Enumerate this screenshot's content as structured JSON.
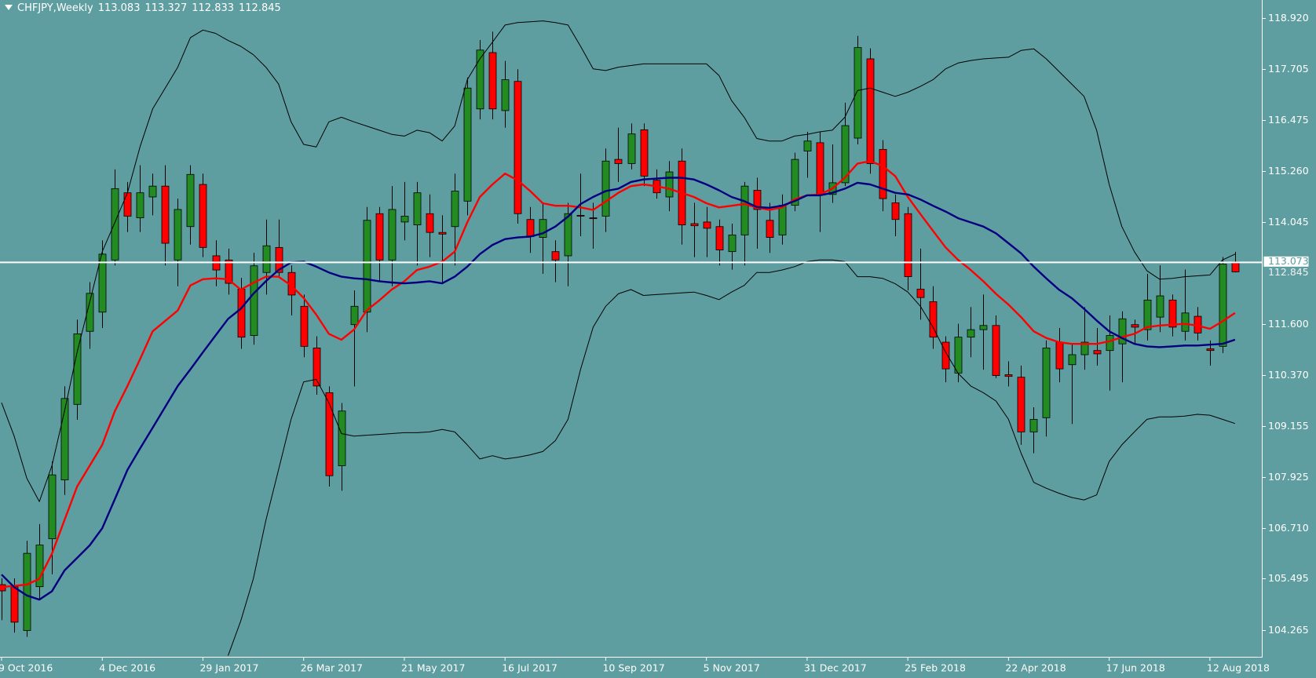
{
  "chart_data": {
    "type": "candlestick",
    "title": "CHFJPY,Weekly",
    "categories": [
      "9 Oct 2016",
      null,
      null,
      null,
      null,
      null,
      null,
      null,
      "4 Dec 2016",
      null,
      null,
      null,
      null,
      null,
      null,
      null,
      "29 Jan 2017",
      null,
      null,
      null,
      null,
      null,
      null,
      null,
      "26 Mar 2017",
      null,
      null,
      null,
      null,
      null,
      null,
      null,
      "21 May 2017",
      null,
      null,
      null,
      null,
      null,
      null,
      null,
      "16 Jul 2017",
      null,
      null,
      null,
      null,
      null,
      null,
      null,
      "10 Sep 2017",
      null,
      null,
      null,
      null,
      null,
      null,
      null,
      "5 Nov 2017",
      null,
      null,
      null,
      null,
      null,
      null,
      null,
      "31 Dec 2017",
      null,
      null,
      null,
      null,
      null,
      null,
      null,
      "25 Feb 2018",
      null,
      null,
      null,
      null,
      null,
      null,
      null,
      "22 Apr 2018",
      null,
      null,
      null,
      null,
      null,
      null,
      null,
      "17 Jun 2018",
      null,
      null,
      null,
      null,
      null,
      null,
      null,
      "12 Aug 2018",
      null,
      null
    ],
    "open": [
      105.35,
      105.3,
      104.25,
      105.3,
      106.45,
      107.86,
      109.67,
      111.42,
      111.88,
      113.13,
      114.74,
      114.14,
      114.64,
      114.9,
      113.13,
      113.93,
      114.94,
      113.23,
      113.13,
      112.43,
      111.32,
      112.83,
      113.43,
      112.83,
      112.02,
      111.02,
      109.95,
      108.2,
      111.58,
      111.88,
      114.24,
      113.13,
      114.04,
      113.97,
      114.24,
      113.79,
      113.93,
      114.54,
      116.75,
      118.1,
      116.71,
      117.41,
      114.1,
      113.67,
      113.33,
      113.23,
      114.2,
      114.14,
      114.18,
      115.54,
      115.44,
      116.25,
      115.04,
      114.64,
      115.5,
      114.0,
      114.04,
      113.93,
      113.33,
      113.73,
      114.8,
      114.08,
      113.73,
      114.44,
      115.74,
      115.94,
      114.7,
      114.98,
      116.05,
      117.95,
      115.78,
      114.5,
      114.24,
      112.43,
      112.13,
      111.16,
      110.42,
      111.28,
      111.46,
      111.56,
      110.38,
      110.32,
      109.01,
      109.35,
      111.16,
      110.62,
      110.86,
      110.96,
      110.96,
      111.12,
      111.58,
      111.46,
      111.76,
      112.17,
      111.42,
      111.78,
      111.0,
      111.06,
      113.083
    ],
    "high": [
      105.5,
      105.5,
      106.4,
      106.8,
      108.3,
      110.1,
      111.7,
      112.6,
      113.6,
      115.3,
      115.0,
      115.4,
      115.2,
      115.4,
      114.6,
      115.4,
      115.2,
      113.6,
      113.4,
      112.7,
      113.3,
      114.1,
      114.1,
      113.0,
      112.3,
      111.3,
      110.1,
      109.7,
      112.4,
      114.4,
      114.4,
      114.9,
      115.0,
      115.0,
      114.7,
      114.2,
      115.2,
      117.5,
      118.4,
      118.6,
      117.9,
      117.7,
      114.4,
      114.5,
      113.6,
      114.5,
      115.2,
      114.5,
      115.8,
      116.3,
      116.4,
      116.4,
      115.3,
      115.5,
      115.8,
      114.5,
      114.4,
      114.1,
      114.0,
      115.0,
      115.1,
      114.5,
      114.7,
      115.7,
      116.2,
      116.2,
      115.9,
      116.9,
      118.5,
      118.2,
      116.0,
      114.7,
      114.4,
      113.4,
      112.5,
      111.3,
      111.6,
      112.0,
      112.3,
      111.8,
      110.7,
      110.6,
      109.6,
      111.2,
      111.5,
      111.1,
      112.0,
      111.5,
      111.8,
      111.9,
      111.7,
      112.8,
      113.0,
      112.3,
      112.9,
      112.0,
      111.2,
      113.2,
      113.327
    ],
    "low": [
      104.5,
      104.2,
      104.1,
      105.0,
      105.6,
      107.5,
      109.3,
      111.0,
      111.5,
      113.0,
      113.8,
      113.8,
      114.2,
      113.0,
      112.5,
      113.5,
      113.2,
      112.5,
      112.3,
      111.0,
      111.1,
      112.3,
      112.7,
      111.8,
      110.8,
      109.9,
      107.7,
      107.6,
      110.1,
      111.4,
      112.6,
      112.5,
      113.6,
      113.0,
      113.2,
      112.6,
      113.0,
      114.2,
      116.5,
      116.5,
      116.3,
      114.0,
      113.3,
      112.8,
      112.6,
      112.5,
      113.7,
      113.4,
      113.8,
      115.0,
      115.3,
      114.9,
      114.6,
      114.3,
      113.5,
      113.2,
      113.2,
      113.0,
      112.9,
      113.0,
      113.4,
      113.3,
      113.5,
      114.3,
      115.1,
      113.8,
      114.5,
      114.9,
      115.9,
      115.2,
      114.3,
      113.7,
      112.4,
      111.7,
      111.0,
      110.2,
      110.2,
      110.8,
      110.5,
      110.3,
      110.1,
      108.7,
      108.5,
      108.9,
      110.2,
      109.2,
      110.5,
      110.6,
      110.0,
      110.2,
      111.1,
      111.2,
      111.4,
      111.3,
      111.2,
      111.2,
      110.6,
      110.9,
      112.833
    ],
    "close": [
      105.2,
      104.45,
      106.1,
      106.3,
      107.98,
      109.81,
      111.36,
      112.33,
      113.27,
      114.84,
      114.18,
      114.74,
      114.9,
      113.53,
      114.34,
      115.18,
      113.43,
      112.89,
      112.57,
      111.28,
      112.99,
      113.47,
      112.83,
      112.29,
      111.06,
      110.11,
      107.96,
      109.51,
      112.02,
      114.08,
      113.13,
      114.34,
      114.18,
      114.74,
      113.79,
      113.75,
      114.78,
      117.25,
      118.16,
      116.75,
      117.45,
      114.24,
      113.69,
      114.1,
      113.13,
      114.24,
      114.18,
      114.12,
      115.5,
      115.44,
      116.15,
      115.14,
      114.74,
      115.24,
      113.97,
      113.95,
      113.89,
      113.37,
      113.73,
      114.9,
      114.34,
      113.67,
      114.44,
      115.54,
      115.98,
      114.7,
      114.98,
      116.35,
      118.22,
      115.44,
      114.6,
      114.1,
      112.73,
      112.23,
      111.28,
      110.52,
      111.28,
      111.46,
      111.56,
      110.36,
      110.34,
      109.01,
      109.31,
      111.02,
      110.52,
      110.86,
      111.16,
      110.88,
      111.32,
      111.72,
      111.52,
      112.17,
      112.27,
      111.52,
      111.86,
      111.38,
      110.96,
      113.03,
      112.845
    ],
    "up_color": "#228b22",
    "down_color": "#ff0000",
    "lines": [
      {
        "color": "#000000",
        "values": [
          109.71,
          108.91,
          107.9,
          107.34,
          108.2,
          109.51,
          110.92,
          112.12,
          113.33,
          114.03,
          114.74,
          115.84,
          116.75,
          117.25,
          117.75,
          118.46,
          118.64,
          118.56,
          118.39,
          118.25,
          118.05,
          117.75,
          117.35,
          116.44,
          115.9,
          115.84,
          116.44,
          116.55,
          116.44,
          116.34,
          116.24,
          116.14,
          116.1,
          116.24,
          116.18,
          115.98,
          116.34,
          117.45,
          117.95,
          118.35,
          118.76,
          118.82,
          118.84,
          118.86,
          118.82,
          118.76,
          118.25,
          117.71,
          117.67,
          117.75,
          117.79,
          117.83,
          117.83,
          117.83,
          117.83,
          117.83,
          117.83,
          117.55,
          116.95,
          116.55,
          116.04,
          115.98,
          115.98,
          116.1,
          116.14,
          116.2,
          116.24,
          116.55,
          117.19,
          117.25,
          117.15,
          117.05,
          117.15,
          117.29,
          117.45,
          117.71,
          117.85,
          117.91,
          117.95,
          117.97,
          117.99,
          118.15,
          118.19,
          117.95,
          117.65,
          117.35,
          117.05,
          116.24,
          114.94,
          113.93,
          113.33,
          112.87,
          112.67,
          112.69,
          112.73,
          112.75,
          112.77,
          113.13,
          113.27
        ]
      },
      {
        "color": "#000000",
        "values": [
          null,
          null,
          null,
          null,
          null,
          null,
          null,
          null,
          null,
          null,
          null,
          null,
          null,
          null,
          null,
          null,
          null,
          null,
          103.65,
          104.48,
          105.49,
          106.89,
          108.1,
          109.31,
          110.21,
          110.27,
          109.71,
          108.97,
          108.91,
          108.93,
          108.95,
          108.97,
          108.99,
          108.99,
          109.01,
          109.07,
          109.01,
          108.7,
          108.36,
          108.44,
          108.36,
          108.4,
          108.46,
          108.54,
          108.8,
          109.31,
          110.51,
          111.52,
          112.02,
          112.32,
          112.42,
          112.28,
          112.3,
          112.32,
          112.34,
          112.36,
          112.28,
          112.18,
          112.36,
          112.52,
          112.83,
          112.83,
          112.89,
          112.97,
          113.09,
          113.13,
          113.13,
          113.09,
          112.73,
          112.73,
          112.69,
          112.56,
          112.36,
          112.02,
          111.52,
          110.92,
          110.41,
          110.11,
          109.95,
          109.75,
          109.31,
          108.5,
          107.8,
          107.66,
          107.54,
          107.44,
          107.38,
          107.5,
          108.3,
          108.7,
          109.01,
          109.31,
          109.37,
          109.37,
          109.39,
          109.43,
          109.41,
          109.31,
          109.21
        ]
      },
      {
        "color": "#ff0000",
        "values": [
          105.29,
          105.32,
          105.35,
          105.49,
          106.09,
          106.9,
          107.7,
          108.2,
          108.7,
          109.51,
          110.11,
          110.75,
          111.42,
          111.67,
          111.92,
          112.52,
          112.67,
          112.69,
          112.67,
          112.42,
          112.58,
          112.73,
          112.73,
          112.52,
          112.22,
          111.82,
          111.36,
          111.22,
          111.46,
          111.92,
          112.16,
          112.42,
          112.62,
          112.89,
          112.97,
          113.09,
          113.33,
          114.03,
          114.64,
          114.94,
          115.2,
          115.04,
          114.78,
          114.49,
          114.43,
          114.43,
          114.39,
          114.33,
          114.53,
          114.74,
          114.9,
          114.94,
          114.9,
          114.84,
          114.74,
          114.64,
          114.49,
          114.39,
          114.43,
          114.47,
          114.39,
          114.33,
          114.39,
          114.58,
          114.68,
          114.7,
          114.84,
          115.1,
          115.44,
          115.5,
          115.38,
          115.14,
          114.64,
          114.23,
          113.83,
          113.43,
          113.13,
          112.89,
          112.62,
          112.32,
          112.06,
          111.76,
          111.42,
          111.26,
          111.16,
          111.12,
          111.12,
          111.12,
          111.18,
          111.28,
          111.36,
          111.52,
          111.56,
          111.58,
          111.6,
          111.56,
          111.48,
          111.66,
          111.86
        ]
      },
      {
        "color": "#000080",
        "values": [
          105.59,
          105.29,
          105.09,
          104.99,
          105.19,
          105.69,
          105.99,
          106.29,
          106.7,
          107.4,
          108.1,
          108.61,
          109.11,
          109.61,
          110.11,
          110.51,
          110.92,
          111.32,
          111.72,
          111.96,
          112.32,
          112.62,
          112.89,
          113.07,
          113.09,
          112.97,
          112.83,
          112.73,
          112.69,
          112.67,
          112.62,
          112.59,
          112.57,
          112.59,
          112.62,
          112.57,
          112.73,
          112.97,
          113.27,
          113.49,
          113.63,
          113.67,
          113.69,
          113.77,
          113.93,
          114.17,
          114.47,
          114.64,
          114.78,
          114.84,
          115.0,
          115.06,
          115.08,
          115.1,
          115.1,
          115.06,
          114.94,
          114.8,
          114.64,
          114.54,
          114.4,
          114.38,
          114.43,
          114.54,
          114.68,
          114.68,
          114.74,
          114.84,
          114.98,
          114.94,
          114.84,
          114.74,
          114.7,
          114.58,
          114.43,
          114.29,
          114.13,
          114.03,
          113.93,
          113.77,
          113.53,
          113.29,
          112.97,
          112.69,
          112.42,
          112.22,
          111.96,
          111.68,
          111.42,
          111.26,
          111.12,
          111.06,
          111.04,
          111.06,
          111.08,
          111.08,
          111.1,
          111.12,
          111.22
        ]
      }
    ],
    "hline": 113.073,
    "ylim": [
      103.62,
      119.36
    ],
    "yticks": [
      {
        "value": 118.92,
        "label": "118.920"
      },
      117.705,
      116.475,
      {
        "value": 115.26,
        "label": "115.260"
      },
      114.045,
      {
        "value": 111.6,
        "label": "111.600"
      },
      {
        "value": 110.37,
        "label": "110.370"
      },
      109.155,
      107.925,
      {
        "value": 106.71,
        "label": "106.710"
      },
      105.495,
      104.265
    ]
  }
}
